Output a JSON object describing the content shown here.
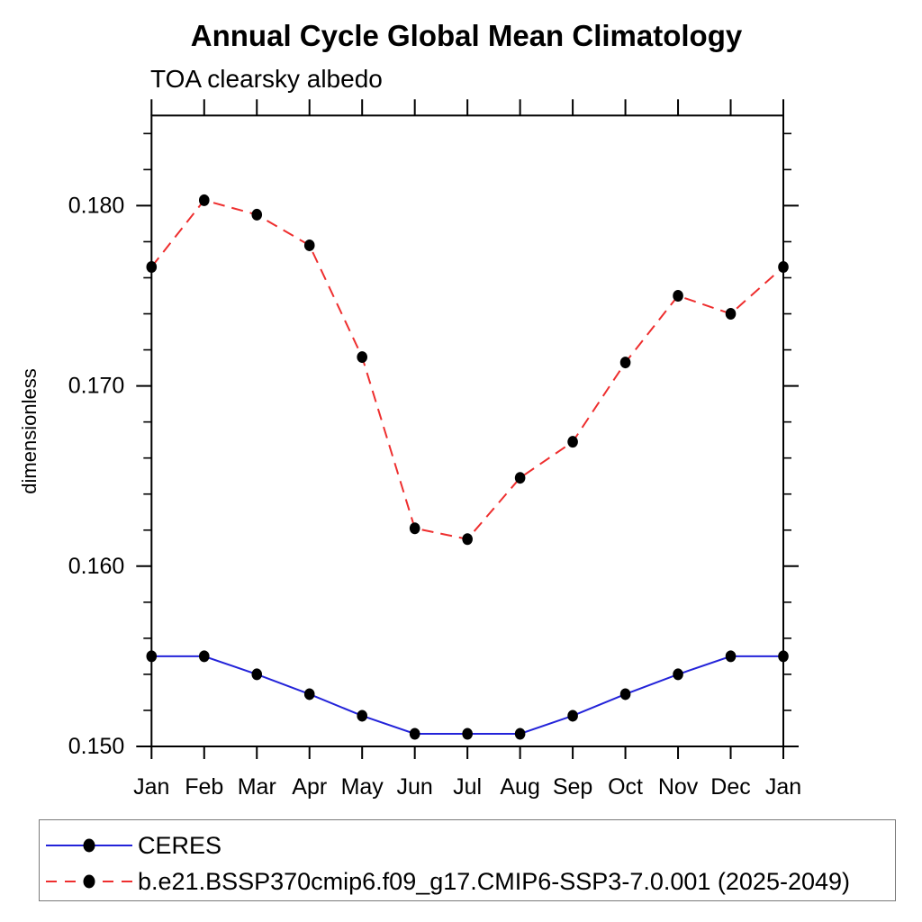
{
  "chart_data": {
    "type": "line",
    "title": "Annual Cycle Global Mean Climatology",
    "subtitle": "TOA clearsky albedo",
    "ylabel": "dimensionless",
    "xlabel": "",
    "categories": [
      "Jan",
      "Feb",
      "Mar",
      "Apr",
      "May",
      "Jun",
      "Jul",
      "Aug",
      "Sep",
      "Oct",
      "Nov",
      "Dec",
      "Jan"
    ],
    "ylim": [
      0.15,
      0.185
    ],
    "ytick_major": [
      {
        "value": 0.15,
        "label": "0.150"
      },
      {
        "value": 0.16,
        "label": "0.160"
      },
      {
        "value": 0.17,
        "label": "0.170"
      },
      {
        "value": 0.18,
        "label": "0.180"
      }
    ],
    "ytick_minor_step": 0.002,
    "grid": false,
    "legend_position": "bottom-left-box",
    "frame_color": "#000000",
    "marker": "filled-circle",
    "marker_color": "#000000",
    "series": [
      {
        "name": "CERES",
        "line_color": "#2323d9",
        "line_style": "solid",
        "values": [
          0.155,
          0.155,
          0.154,
          0.1529,
          0.1517,
          0.1507,
          0.1507,
          0.1507,
          0.1517,
          0.1529,
          0.154,
          0.155,
          0.155
        ]
      },
      {
        "name": "b.e21.BSSP370cmip6.f09_g17.CMIP6-SSP3-7.0.001 (2025-2049)",
        "line_color": "#ee2e2e",
        "line_style": "dashed",
        "values": [
          0.1766,
          0.1803,
          0.1795,
          0.1778,
          0.1716,
          0.1621,
          0.1615,
          0.1649,
          0.1669,
          0.1713,
          0.175,
          0.174,
          0.1766
        ]
      }
    ]
  }
}
